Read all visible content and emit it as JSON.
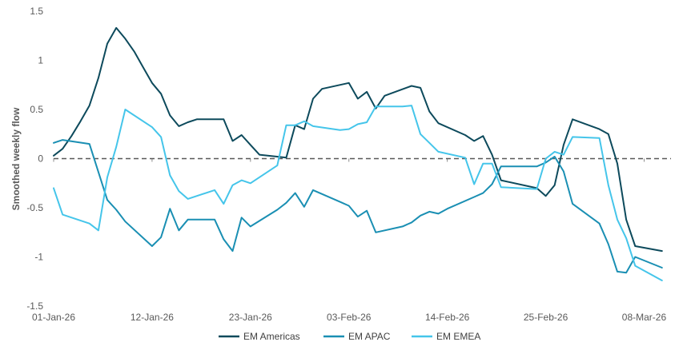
{
  "chart_data": {
    "type": "line",
    "title": "",
    "xlabel": "",
    "ylabel": "Smoothed weekly flow",
    "ylim": [
      -1.5,
      1.5
    ],
    "xlim": [
      "2026-01-01",
      "2026-03-11"
    ],
    "y_ticks": [
      1.5,
      1,
      0.5,
      0,
      -0.5,
      -1,
      -1.5
    ],
    "y_tick_labels": [
      "1.5",
      "1",
      "0.5",
      "0",
      "-0.5",
      "-1",
      "-1.5"
    ],
    "x_ticks": [
      "2026-01-01",
      "2026-01-12",
      "2026-01-23",
      "2026-02-03",
      "2026-02-14",
      "2026-02-25",
      "2026-03-08"
    ],
    "x_tick_labels": [
      "01-Jan-26",
      "12-Jan-26",
      "23-Jan-26",
      "03-Feb-26",
      "14-Feb-26",
      "25-Feb-26",
      "08-Mar-26"
    ],
    "zero_line": {
      "value": 0,
      "style": "dashed",
      "color": "#595959"
    },
    "grid": false,
    "legend_position": "bottom",
    "series": [
      {
        "name": "EM Americas",
        "color": "#0D4A5C",
        "x": [
          "2026-01-01",
          "2026-01-02",
          "2026-01-03",
          "2026-01-04",
          "2026-01-05",
          "2026-01-06",
          "2026-01-07",
          "2026-01-08",
          "2026-01-09",
          "2026-01-10",
          "2026-01-11",
          "2026-01-12",
          "2026-01-13",
          "2026-01-14",
          "2026-01-15",
          "2026-01-16",
          "2026-01-17",
          "2026-01-20",
          "2026-01-21",
          "2026-01-22",
          "2026-01-23",
          "2026-01-24",
          "2026-01-27",
          "2026-01-28",
          "2026-01-29",
          "2026-01-30",
          "2026-01-31",
          "2026-02-03",
          "2026-02-04",
          "2026-02-05",
          "2026-02-06",
          "2026-02-07",
          "2026-02-10",
          "2026-02-11",
          "2026-02-12",
          "2026-02-13",
          "2026-02-16",
          "2026-02-17",
          "2026-02-18",
          "2026-02-19",
          "2026-02-20",
          "2026-02-24",
          "2026-02-25",
          "2026-02-26",
          "2026-02-27",
          "2026-02-28",
          "2026-03-03",
          "2026-03-04",
          "2026-03-05",
          "2026-03-06",
          "2026-03-07",
          "2026-03-10"
        ],
        "values": [
          0.03,
          0.1,
          0.23,
          0.38,
          0.54,
          0.82,
          1.17,
          1.33,
          1.22,
          1.09,
          0.93,
          0.77,
          0.66,
          0.44,
          0.33,
          0.37,
          0.4,
          0.4,
          0.18,
          0.24,
          0.14,
          0.04,
          0.01,
          0.34,
          0.3,
          0.61,
          0.71,
          0.77,
          0.61,
          0.68,
          0.51,
          0.64,
          0.74,
          0.72,
          0.48,
          0.36,
          0.24,
          0.18,
          0.23,
          0.04,
          -0.22,
          -0.3,
          -0.38,
          -0.27,
          0.14,
          0.4,
          0.3,
          0.25,
          -0.05,
          -0.62,
          -0.89,
          -0.94
        ]
      },
      {
        "name": "EM APAC",
        "color": "#1A8FB3",
        "x": [
          "2026-01-01",
          "2026-01-02",
          "2026-01-05",
          "2026-01-07",
          "2026-01-08",
          "2026-01-09",
          "2026-01-12",
          "2026-01-13",
          "2026-01-14",
          "2026-01-15",
          "2026-01-16",
          "2026-01-19",
          "2026-01-20",
          "2026-01-21",
          "2026-01-22",
          "2026-01-23",
          "2026-01-26",
          "2026-01-27",
          "2026-01-28",
          "2026-01-29",
          "2026-01-30",
          "2026-02-02",
          "2026-02-03",
          "2026-02-04",
          "2026-02-05",
          "2026-02-06",
          "2026-02-09",
          "2026-02-10",
          "2026-02-11",
          "2026-02-12",
          "2026-02-13",
          "2026-02-14",
          "2026-02-17",
          "2026-02-18",
          "2026-02-19",
          "2026-02-20",
          "2026-02-24",
          "2026-02-25",
          "2026-02-26",
          "2026-02-27",
          "2026-02-28",
          "2026-03-03",
          "2026-03-04",
          "2026-03-05",
          "2026-03-06",
          "2026-03-07",
          "2026-03-10"
        ],
        "values": [
          0.16,
          0.19,
          0.15,
          -0.42,
          -0.52,
          -0.64,
          -0.89,
          -0.8,
          -0.51,
          -0.73,
          -0.62,
          -0.62,
          -0.82,
          -0.94,
          -0.6,
          -0.69,
          -0.52,
          -0.45,
          -0.35,
          -0.49,
          -0.32,
          -0.44,
          -0.48,
          -0.59,
          -0.53,
          -0.75,
          -0.69,
          -0.65,
          -0.58,
          -0.54,
          -0.56,
          -0.51,
          -0.39,
          -0.35,
          -0.26,
          -0.08,
          -0.08,
          -0.04,
          0.02,
          -0.13,
          -0.46,
          -0.66,
          -0.87,
          -1.15,
          -1.16,
          -1.0,
          -1.11
        ]
      },
      {
        "name": "EM EMEA",
        "color": "#45C5EA",
        "x": [
          "2026-01-01",
          "2026-01-02",
          "2026-01-05",
          "2026-01-06",
          "2026-01-07",
          "2026-01-08",
          "2026-01-09",
          "2026-01-12",
          "2026-01-13",
          "2026-01-14",
          "2026-01-15",
          "2026-01-16",
          "2026-01-19",
          "2026-01-20",
          "2026-01-21",
          "2026-01-22",
          "2026-01-23",
          "2026-01-26",
          "2026-01-27",
          "2026-01-28",
          "2026-01-29",
          "2026-01-30",
          "2026-02-02",
          "2026-02-03",
          "2026-02-04",
          "2026-02-05",
          "2026-02-06",
          "2026-02-09",
          "2026-02-10",
          "2026-02-11",
          "2026-02-12",
          "2026-02-13",
          "2026-02-16",
          "2026-02-17",
          "2026-02-18",
          "2026-02-19",
          "2026-02-20",
          "2026-02-24",
          "2026-02-25",
          "2026-02-26",
          "2026-02-27",
          "2026-02-28",
          "2026-03-03",
          "2026-03-04",
          "2026-03-05",
          "2026-03-06",
          "2026-03-07",
          "2026-03-10"
        ],
        "values": [
          -0.3,
          -0.57,
          -0.66,
          -0.73,
          -0.19,
          0.12,
          0.5,
          0.32,
          0.22,
          -0.17,
          -0.33,
          -0.41,
          -0.32,
          -0.46,
          -0.27,
          -0.22,
          -0.25,
          -0.07,
          0.34,
          0.34,
          0.38,
          0.33,
          0.29,
          0.3,
          0.35,
          0.37,
          0.53,
          0.53,
          0.54,
          0.25,
          0.16,
          0.07,
          0.01,
          -0.26,
          -0.05,
          -0.05,
          -0.29,
          -0.31,
          0.0,
          0.07,
          0.04,
          0.22,
          0.21,
          -0.27,
          -0.62,
          -0.81,
          -1.09,
          -1.24
        ]
      }
    ]
  }
}
